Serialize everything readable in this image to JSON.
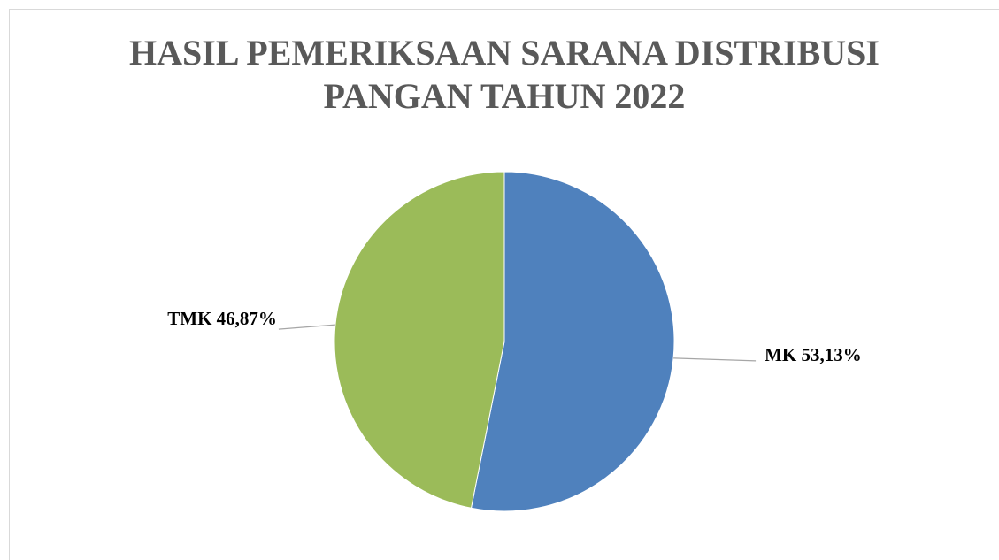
{
  "chart_data": {
    "type": "pie",
    "title": [
      "HASIL PEMERIKSAAN SARANA DISTRIBUSI",
      "PANGAN TAHUN 2022"
    ],
    "categories": [
      "MK",
      "TMK"
    ],
    "values": [
      53.13,
      46.87
    ],
    "value_labels": [
      "53,13%",
      "46,87%"
    ],
    "colors": [
      "#4f81bd",
      "#9bbb59"
    ]
  }
}
